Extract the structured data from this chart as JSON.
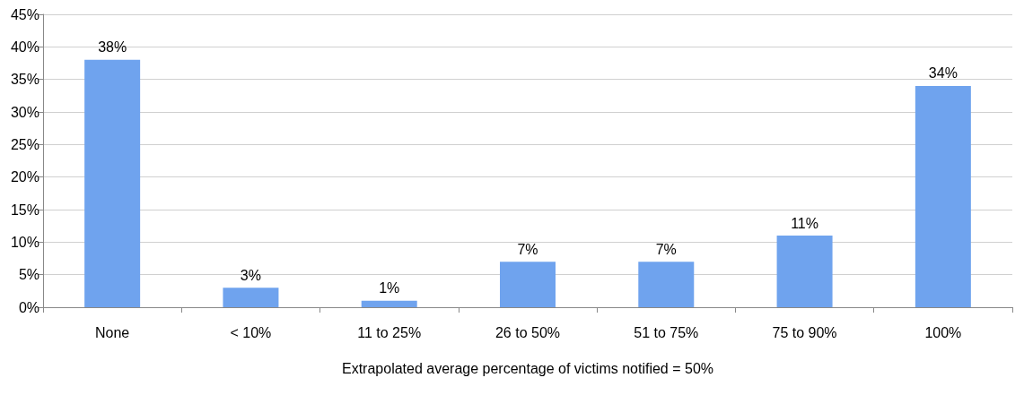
{
  "chart_data": {
    "type": "bar",
    "xlabel": "Extrapolated average percentage of victims notified = 50%",
    "categories": [
      "None",
      "< 10%",
      "11 to 25%",
      "26 to 50%",
      "51 to 75%",
      "75 to 90%",
      "100%"
    ],
    "values": [
      38,
      3,
      1,
      7,
      7,
      11,
      34
    ],
    "value_labels": [
      "38%",
      "3%",
      "1%",
      "7%",
      "7%",
      "11%",
      "34%"
    ],
    "color": "#6fa3ee",
    "ylim": [
      0,
      45
    ],
    "yticks": [
      {
        "value": 0,
        "label": "0%"
      },
      {
        "value": 5,
        "label": "5%"
      },
      {
        "value": 10,
        "label": "10%"
      },
      {
        "value": 15,
        "label": "15%"
      },
      {
        "value": 20,
        "label": "20%"
      },
      {
        "value": 25,
        "label": "25%"
      },
      {
        "value": 30,
        "label": "30%"
      },
      {
        "value": 35,
        "label": "35%"
      },
      {
        "value": 40,
        "label": "40%"
      },
      {
        "value": 45,
        "label": "45%"
      }
    ],
    "grid": "y"
  }
}
